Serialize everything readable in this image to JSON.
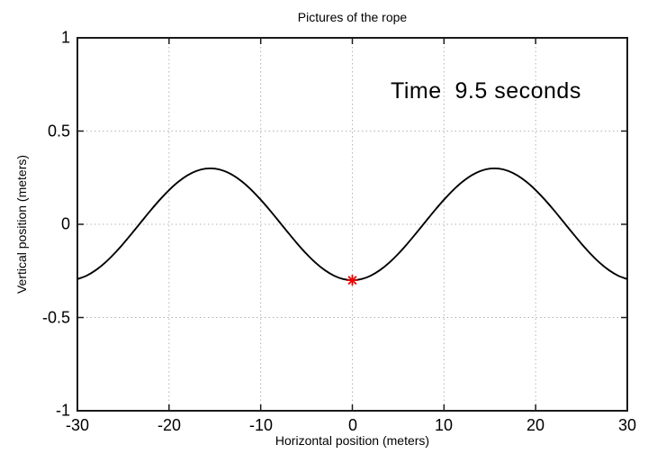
{
  "chart_data": {
    "type": "line",
    "title": "Pictures of the rope",
    "xlabel": "Horizontal position (meters)",
    "ylabel": "Vertical position (meters)",
    "annotation": "Time  9.5 seconds",
    "xlim": [
      -30,
      30
    ],
    "ylim": [
      -1,
      1
    ],
    "x_ticks": [
      -30,
      -20,
      -10,
      0,
      10,
      20,
      30
    ],
    "x_tick_labels": [
      "-30",
      "-20",
      "-10",
      "0",
      "10",
      "20",
      "30"
    ],
    "y_ticks": [
      1,
      0.5,
      0,
      -0.5,
      -1
    ],
    "y_tick_labels": [
      "1",
      "0.5",
      "0",
      "-0.5",
      "-1"
    ],
    "grid": true,
    "legend": "none",
    "colors": {
      "curve": "#000000",
      "marker": "#ee0000",
      "grid": "#b3b3b3",
      "border": "#1a1a1a"
    },
    "marker_point": {
      "x": 0,
      "y": -0.3,
      "shape": "asterisk"
    },
    "series": [
      {
        "name": "rope",
        "x": [
          -30,
          -29,
          -28,
          -27,
          -26,
          -25,
          -24,
          -23,
          -22,
          -21,
          -20,
          -19,
          -18,
          -17,
          -16,
          -15,
          -14,
          -13,
          -12,
          -11,
          -10,
          -9,
          -8,
          -7,
          -6,
          -5,
          -4,
          -3,
          -2,
          -1,
          0,
          1,
          2,
          3,
          4,
          5,
          6,
          7,
          8,
          9,
          10,
          11,
          12,
          13,
          14,
          15,
          16,
          17,
          18,
          19,
          20,
          21,
          22,
          23,
          24,
          25,
          26,
          27,
          28,
          29,
          30
        ],
        "y": [
          -0.2939,
          -0.2757,
          -0.2462,
          -0.2067,
          -0.1587,
          -0.1042,
          -0.0454,
          0.0152,
          0.0752,
          0.132,
          0.1835,
          0.2276,
          0.2623,
          0.2862,
          0.2985,
          0.2985,
          0.2862,
          0.2623,
          0.2276,
          0.1835,
          0.132,
          0.0752,
          0.0152,
          -0.0454,
          -0.1042,
          -0.1587,
          -0.2067,
          -0.2462,
          -0.2757,
          -0.2939,
          -0.3,
          -0.2939,
          -0.2757,
          -0.2462,
          -0.2067,
          -0.1587,
          -0.1042,
          -0.0454,
          0.0152,
          0.0752,
          0.132,
          0.1835,
          0.2276,
          0.2623,
          0.2862,
          0.2985,
          0.2985,
          0.2862,
          0.2623,
          0.2276,
          0.1835,
          0.132,
          0.0752,
          0.0152,
          -0.0454,
          -0.1042,
          -0.1587,
          -0.2067,
          -0.2462,
          -0.2757,
          -0.2939
        ]
      }
    ]
  }
}
